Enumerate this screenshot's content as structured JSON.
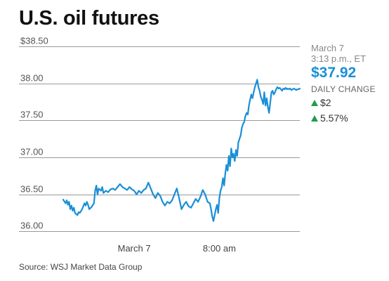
{
  "title": "U.S. oil futures",
  "source": "Source: WSJ Market Data Group",
  "info": {
    "date": "March 7",
    "time": "3:13 p.m., ET",
    "price": "$37.92",
    "change_label": "DAILY CHANGE",
    "change_amount": "$2",
    "change_percent": "5.57%",
    "price_color": "#1a8fd6",
    "up_color": "#1e9e4a"
  },
  "chart_data": {
    "type": "line",
    "title": "U.S. oil futures",
    "ylim": [
      35.9,
      38.5
    ],
    "yticks": [
      {
        "value": 38.5,
        "label": "$38.50"
      },
      {
        "value": 38.0,
        "label": "38.00"
      },
      {
        "value": 37.5,
        "label": "37.50"
      },
      {
        "value": 37.0,
        "label": "37.00"
      },
      {
        "value": 36.5,
        "label": "36.50"
      },
      {
        "value": 36.0,
        "label": "36.00"
      }
    ],
    "xlim": [
      0,
      100
    ],
    "xticks": [
      {
        "value": 30,
        "label": "March 7"
      },
      {
        "value": 66,
        "label": "8:00 am"
      }
    ],
    "grid": "horizontal",
    "line_color": "#1a8fd6",
    "series": [
      {
        "x": [
          0,
          1,
          1.5,
          2,
          2.5,
          3,
          3.5,
          4,
          4.5,
          5,
          6,
          6.5,
          7,
          8,
          9,
          9.5,
          10,
          10.5,
          11,
          12,
          13,
          13.5,
          14,
          14.5,
          15,
          16,
          16.5,
          17,
          18,
          19,
          20,
          21,
          22,
          23,
          24,
          25,
          26,
          27,
          28,
          29,
          30,
          31,
          32,
          33,
          34,
          35,
          36,
          37,
          38,
          39,
          40,
          41,
          42,
          43,
          44,
          45,
          46,
          47,
          48,
          49,
          50,
          51,
          52,
          53,
          54,
          55,
          56,
          57,
          58,
          59,
          60,
          61,
          62,
          62.5,
          63,
          63.5,
          64,
          64.5,
          65,
          65.5,
          66,
          66.5,
          67,
          67.5,
          68,
          68.5,
          69,
          69.5,
          70,
          70.5,
          71,
          71.5,
          72,
          72.5,
          73,
          73.5,
          74,
          74.5,
          75,
          75.5,
          76,
          76.5,
          77,
          77.5,
          78,
          78.5,
          79,
          79.5,
          80,
          80.5,
          81,
          81.5,
          82,
          82.5,
          83,
          83.5,
          84,
          84.5,
          85,
          85.5,
          86,
          86.5,
          87,
          87.5,
          88,
          88.5,
          89,
          89.5,
          90,
          90.5,
          91,
          91.5,
          92,
          92.5,
          93,
          93.5,
          94,
          94.5,
          95,
          95.5,
          96,
          96.5,
          97,
          97.5,
          98,
          98.5,
          99,
          99.5,
          100
        ],
        "y": [
          36.43,
          36.38,
          36.42,
          36.36,
          36.4,
          36.3,
          36.35,
          36.28,
          36.32,
          36.25,
          36.22,
          36.26,
          36.25,
          36.3,
          36.38,
          36.35,
          36.4,
          36.36,
          36.3,
          36.33,
          36.38,
          36.55,
          36.62,
          36.5,
          36.58,
          36.55,
          36.6,
          36.52,
          36.55,
          36.53,
          36.57,
          36.58,
          36.56,
          36.6,
          36.64,
          36.6,
          36.58,
          36.56,
          36.6,
          36.57,
          36.55,
          36.5,
          36.55,
          36.52,
          36.56,
          36.58,
          36.66,
          36.58,
          36.5,
          36.45,
          36.52,
          36.48,
          36.4,
          36.35,
          36.4,
          36.38,
          36.42,
          36.5,
          36.58,
          36.45,
          36.3,
          36.36,
          36.4,
          36.34,
          36.32,
          36.38,
          36.44,
          36.4,
          36.47,
          36.56,
          36.5,
          36.4,
          36.38,
          36.3,
          36.2,
          36.14,
          36.22,
          36.3,
          36.36,
          36.25,
          36.45,
          36.55,
          36.6,
          36.72,
          36.62,
          36.78,
          36.9,
          36.82,
          37.02,
          36.88,
          37.12,
          37.0,
          37.05,
          36.95,
          37.1,
          37.02,
          37.2,
          37.25,
          37.3,
          37.4,
          37.45,
          37.48,
          37.56,
          37.6,
          37.58,
          37.7,
          37.78,
          37.85,
          37.8,
          37.88,
          37.95,
          38.0,
          38.05,
          37.95,
          37.9,
          37.82,
          37.78,
          37.72,
          37.88,
          37.7,
          37.8,
          37.68,
          37.6,
          37.74,
          37.88,
          37.9,
          37.85,
          37.88,
          37.92,
          37.95,
          37.93,
          37.94,
          37.92,
          37.9,
          37.93,
          37.92,
          37.94,
          37.92,
          37.93,
          37.92,
          37.93,
          37.91,
          37.92,
          37.93,
          37.92,
          37.91,
          37.92,
          37.92,
          37.93
        ]
      }
    ]
  }
}
